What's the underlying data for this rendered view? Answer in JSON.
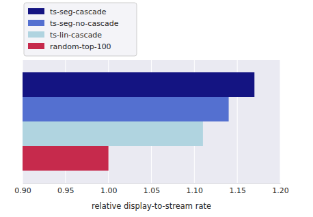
{
  "chart_data": {
    "type": "bar",
    "orientation": "horizontal",
    "categories": [
      null
    ],
    "series": [
      {
        "name": "ts-seg-cascade",
        "color": "#141482",
        "values": [
          1.17
        ]
      },
      {
        "name": "ts-seg-no-cascade",
        "color": "#5470d0",
        "values": [
          1.14
        ]
      },
      {
        "name": "ts-lin-cascade",
        "color": "#b0d4e0",
        "values": [
          1.11
        ]
      },
      {
        "name": "random-top-100",
        "color": "#c62a4c",
        "values": [
          1.0
        ]
      }
    ],
    "x_label": "relative display-to-stream rate",
    "xlim": [
      0.9,
      1.2
    ],
    "xticks": [
      {
        "value": 0.9,
        "label": "0.90"
      },
      0.95,
      {
        "value": 1.0,
        "label": "1.00"
      },
      1.05,
      {
        "value": 1.1,
        "label": "1.10"
      },
      1.15,
      {
        "value": 1.2,
        "label": "1.20"
      }
    ],
    "grid": true,
    "legend": "upper left",
    "tick_labels": "x"
  }
}
